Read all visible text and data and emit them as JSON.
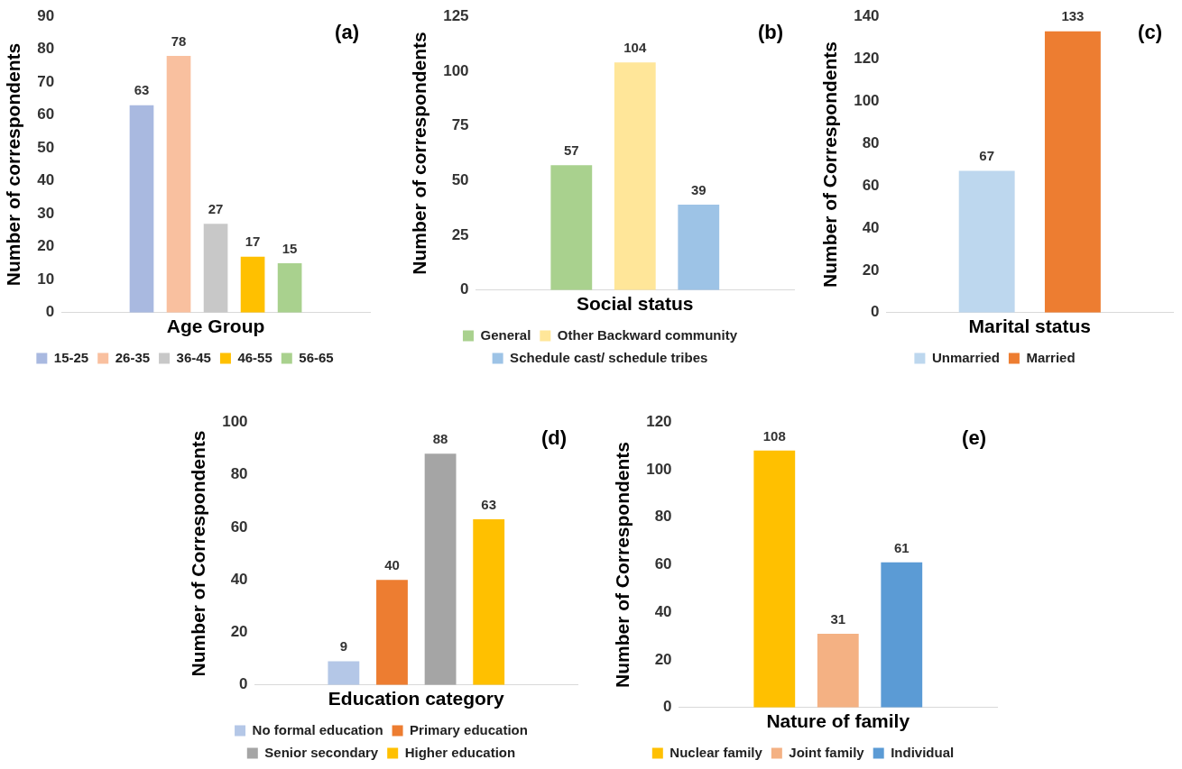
{
  "chart_data": [
    {
      "type": "bar",
      "annotations": [
        "(a)"
      ],
      "xlabel": "Age Group",
      "ylabel": "Number of correspondents",
      "categories": [
        null
      ],
      "ylim": [
        0,
        90
      ],
      "yticks": [
        0,
        10,
        20,
        30,
        40,
        50,
        60,
        70,
        80,
        90
      ],
      "legend": "bottom",
      "data_labels": true,
      "tick_labels": "y",
      "series": [
        {
          "name": "15-25",
          "color": "#a9b9e0",
          "values": [
            63
          ]
        },
        {
          "name": "26-35",
          "color": "#f9c09f",
          "values": [
            78
          ]
        },
        {
          "name": "36-45",
          "color": "#c8c8c8",
          "values": [
            27
          ]
        },
        {
          "name": "46-55",
          "color": "#ffc000",
          "values": [
            17
          ]
        },
        {
          "name": "56-65",
          "color": "#a9d18e",
          "values": [
            15
          ]
        }
      ]
    },
    {
      "type": "bar",
      "annotations": [
        "(b)"
      ],
      "xlabel": "Social status",
      "ylabel": "Number of correspondents",
      "categories": [
        null
      ],
      "ylim": [
        0,
        125
      ],
      "yticks": [
        0,
        25,
        50,
        75,
        100,
        125
      ],
      "legend": "bottom",
      "data_labels": true,
      "tick_labels": "y",
      "series": [
        {
          "name": "General",
          "color": "#a9d18e",
          "values": [
            57
          ]
        },
        {
          "name": "Other Backward community",
          "color": "#ffe699",
          "values": [
            104
          ]
        },
        {
          "name": "Schedule cast/ schedule tribes",
          "color": "#9dc3e6",
          "values": [
            39
          ]
        }
      ]
    },
    {
      "type": "bar",
      "annotations": [
        "(c)"
      ],
      "xlabel": "Marital status",
      "ylabel": "Number of Correspondents",
      "categories": [
        null
      ],
      "ylim": [
        0,
        140
      ],
      "yticks": [
        0,
        20,
        40,
        60,
        80,
        100,
        120,
        140
      ],
      "legend": "bottom",
      "data_labels": true,
      "tick_labels": "y",
      "series": [
        {
          "name": "Unmarried",
          "color": "#bdd7ee",
          "values": [
            67
          ]
        },
        {
          "name": "Married",
          "color": "#ed7d31",
          "values": [
            133
          ]
        }
      ]
    },
    {
      "type": "bar",
      "annotations": [
        "(d)"
      ],
      "xlabel": "Education category",
      "ylabel": "Number of Correspondents",
      "categories": [
        null
      ],
      "ylim": [
        0,
        100
      ],
      "yticks": [
        0,
        20,
        40,
        60,
        80,
        100
      ],
      "legend": "bottom",
      "data_labels": true,
      "tick_labels": "y",
      "series": [
        {
          "name": "No formal education",
          "color": "#b4c7e7",
          "values": [
            9
          ]
        },
        {
          "name": "Primary education",
          "color": "#ed7d31",
          "values": [
            40
          ]
        },
        {
          "name": "Senior secondary",
          "color": "#a5a5a5",
          "values": [
            88
          ]
        },
        {
          "name": "Higher education",
          "color": "#ffc000",
          "values": [
            63
          ]
        }
      ]
    },
    {
      "type": "bar",
      "annotations": [
        "(e)"
      ],
      "xlabel": "Nature of family",
      "ylabel": "Number of Correspondents",
      "categories": [
        null
      ],
      "ylim": [
        0,
        120
      ],
      "yticks": [
        0,
        20,
        40,
        60,
        80,
        100,
        120
      ],
      "legend": "bottom",
      "data_labels": true,
      "tick_labels": "y",
      "series": [
        {
          "name": "Nuclear family",
          "color": "#ffc000",
          "values": [
            108
          ]
        },
        {
          "name": "Joint family",
          "color": "#f4b183",
          "values": [
            31
          ]
        },
        {
          "name": "Individual",
          "color": "#5b9bd5",
          "values": [
            61
          ]
        }
      ]
    }
  ]
}
